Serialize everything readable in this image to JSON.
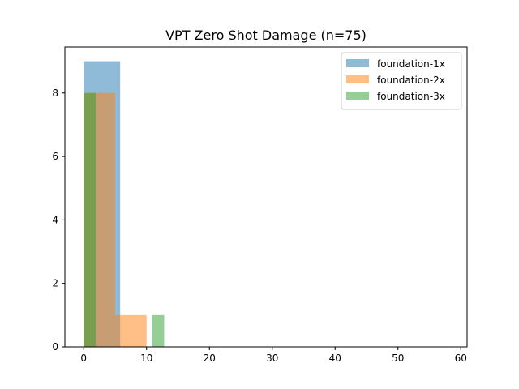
{
  "chart_data": {
    "type": "bar",
    "subtype": "overlaid-histogram",
    "title": "VPT Zero Shot Damage (n=75)",
    "xlabel": "",
    "ylabel": "",
    "xlim": [
      -3,
      61
    ],
    "ylim": [
      0,
      9.45
    ],
    "xticks": [
      0,
      10,
      20,
      30,
      40,
      50,
      60
    ],
    "yticks": [
      0,
      2,
      4,
      6,
      8
    ],
    "grid": false,
    "legend_position": "top-right",
    "series": [
      {
        "name": "foundation-1x",
        "color": "#1f77b4",
        "opacity": 0.5,
        "bins": [
          {
            "x0": 0,
            "x1": 5.8,
            "count": 9
          },
          {
            "x0": 5.8,
            "x1": 58,
            "count": 0
          }
        ]
      },
      {
        "name": "foundation-2x",
        "color": "#ff7f0e",
        "opacity": 0.5,
        "bins": [
          {
            "x0": 0,
            "x1": 5,
            "count": 8
          },
          {
            "x0": 5,
            "x1": 10,
            "count": 1
          }
        ]
      },
      {
        "name": "foundation-3x",
        "color": "#2ca02c",
        "opacity": 0.5,
        "bins": [
          {
            "x0": 0,
            "x1": 1.9,
            "count": 8
          },
          {
            "x0": 10.9,
            "x1": 12.8,
            "count": 1
          }
        ]
      }
    ]
  }
}
